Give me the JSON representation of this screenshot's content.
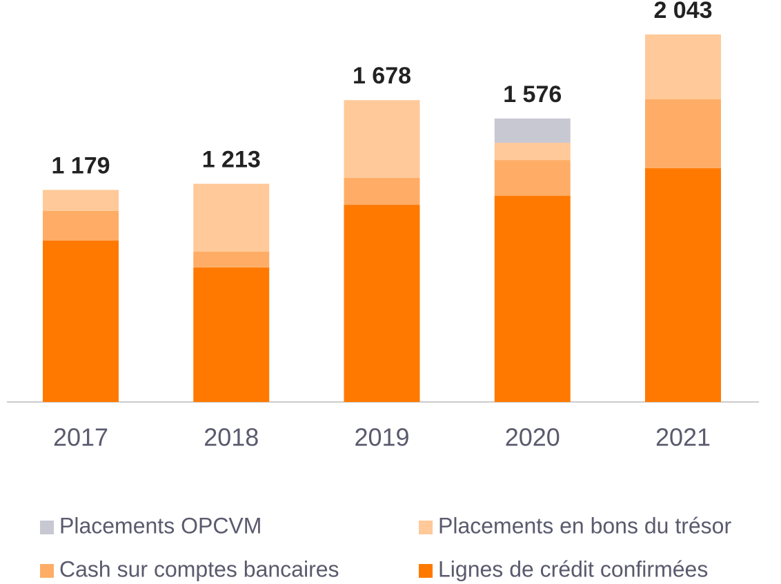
{
  "chart_data": {
    "type": "stacked_bar",
    "categories": [
      "2017",
      "2018",
      "2019",
      "2020",
      "2021"
    ],
    "series": [
      {
        "name": "Lignes de crédit confirmées",
        "color": "#ff7900",
        "values": [
          897,
          748,
          1096,
          1146,
          1300
        ]
      },
      {
        "name": "Cash sur comptes bancaires",
        "color": "#ffad66",
        "values": [
          165,
          88,
          150,
          199,
          383
        ]
      },
      {
        "name": "Placements en bons du trésor",
        "color": "#ffc999",
        "values": [
          117,
          377,
          432,
          96,
          360
        ]
      },
      {
        "name": "Placements OPCVM",
        "color": "#c8c8d2",
        "values": [
          0,
          0,
          0,
          135,
          0
        ]
      }
    ],
    "totals": [
      1179,
      1213,
      1678,
      1576,
      2043
    ],
    "total_labels": [
      "1 179",
      "1 213",
      "1 678",
      "1 576",
      "2 043"
    ],
    "legend": "bottom"
  }
}
